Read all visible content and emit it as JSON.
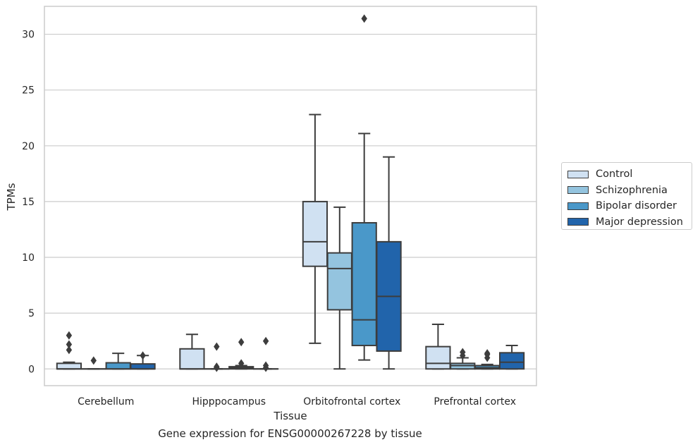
{
  "chart_data": {
    "type": "box",
    "caption": "Gene expression for ENSG00000267228 by tissue",
    "xlabel": "Tissue",
    "ylabel": "TPMs",
    "ylim": [
      -1.5,
      32.5
    ],
    "yticks": [
      0,
      5,
      10,
      15,
      20,
      25,
      30
    ],
    "grid": "horizontal",
    "legend_position": "right",
    "categories": [
      "Cerebellum",
      "Hipppocampus",
      "Orbitofrontal cortex",
      "Prefrontal cortex"
    ],
    "series": [
      {
        "name": "Control",
        "color": "#d0e1f2",
        "boxes": [
          {
            "min": 0,
            "q1": 0,
            "median": 0,
            "q3": 0.5,
            "max": 0.6,
            "outliers": [
              1.7,
              2.2,
              3.0
            ]
          },
          {
            "min": 0,
            "q1": 0,
            "median": 0,
            "q3": 1.8,
            "max": 3.1,
            "outliers": []
          },
          {
            "min": 2.3,
            "q1": 9.2,
            "median": 11.4,
            "q3": 15.0,
            "max": 22.8,
            "outliers": []
          },
          {
            "min": 0,
            "q1": 0,
            "median": 0.5,
            "q3": 2.0,
            "max": 4.0,
            "outliers": []
          }
        ]
      },
      {
        "name": "Schizophrenia",
        "color": "#94c4df",
        "boxes": [
          {
            "min": 0,
            "q1": 0,
            "median": 0,
            "q3": 0,
            "max": 0,
            "outliers": [
              0.75
            ]
          },
          {
            "min": 0,
            "q1": 0,
            "median": 0,
            "q3": 0,
            "max": 0,
            "outliers": [
              0.1,
              0.2,
              2.0
            ]
          },
          {
            "min": 0,
            "q1": 5.3,
            "median": 9.0,
            "q3": 10.4,
            "max": 14.5,
            "outliers": []
          },
          {
            "min": 0,
            "q1": 0,
            "median": 0.3,
            "q3": 0.5,
            "max": 1.0,
            "outliers": [
              1.2,
              1.5
            ]
          }
        ]
      },
      {
        "name": "Bipolar disorder",
        "color": "#4a98c9",
        "boxes": [
          {
            "min": 0,
            "q1": 0,
            "median": 0,
            "q3": 0.55,
            "max": 1.4,
            "outliers": []
          },
          {
            "min": 0,
            "q1": 0,
            "median": 0.1,
            "q3": 0.2,
            "max": 0.3,
            "outliers": [
              0.5,
              2.4
            ]
          },
          {
            "min": 0.8,
            "q1": 2.1,
            "median": 4.4,
            "q3": 13.1,
            "max": 21.1,
            "outliers": [
              31.4
            ]
          },
          {
            "min": 0,
            "q1": 0,
            "median": 0.1,
            "q3": 0.3,
            "max": 0.4,
            "outliers": [
              1.0,
              1.3,
              1.4
            ]
          }
        ]
      },
      {
        "name": "Major depression",
        "color": "#2164ab",
        "boxes": [
          {
            "min": 0,
            "q1": 0,
            "median": 0,
            "q3": 0.45,
            "max": 1.2,
            "outliers": [
              1.2
            ]
          },
          {
            "min": 0,
            "q1": 0,
            "median": 0,
            "q3": 0,
            "max": 0,
            "outliers": [
              0.1,
              0.3,
              2.5
            ]
          },
          {
            "min": 0,
            "q1": 1.6,
            "median": 6.5,
            "q3": 11.4,
            "max": 19.0,
            "outliers": []
          },
          {
            "min": 0,
            "q1": 0,
            "median": 0.6,
            "q3": 1.45,
            "max": 2.1,
            "outliers": []
          }
        ]
      }
    ]
  }
}
